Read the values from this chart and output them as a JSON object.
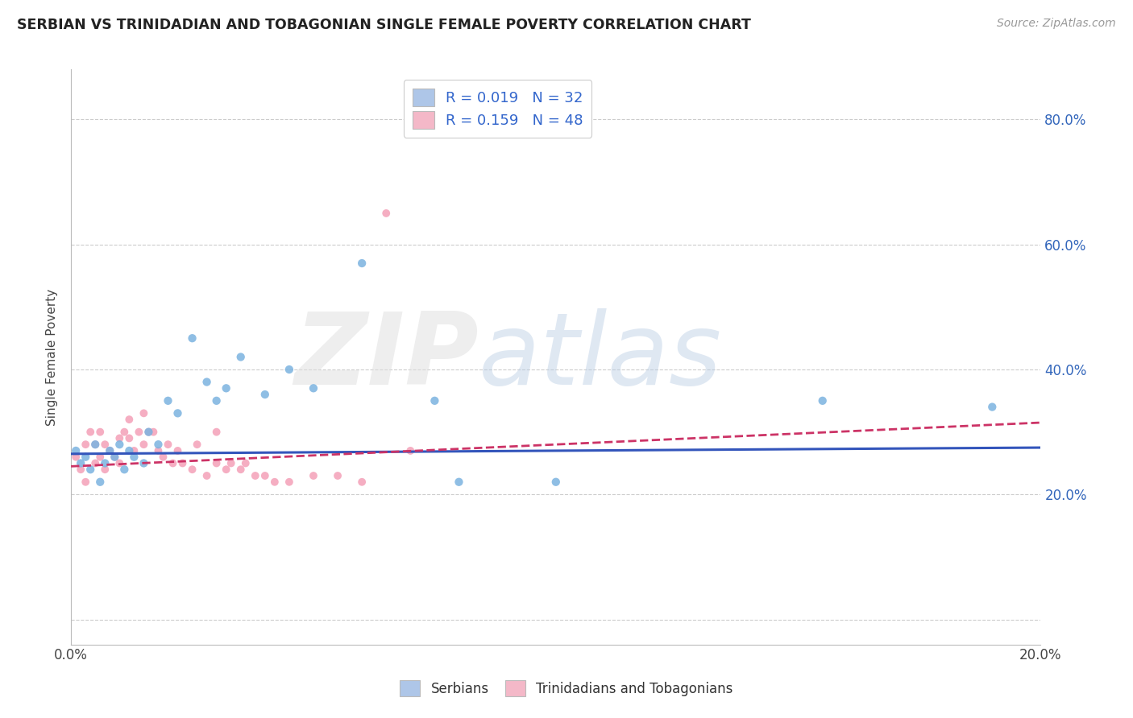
{
  "title": "SERBIAN VS TRINIDADIAN AND TOBAGONIAN SINGLE FEMALE POVERTY CORRELATION CHART",
  "source": "Source: ZipAtlas.com",
  "ylabel": "Single Female Poverty",
  "xlim": [
    0.0,
    0.2
  ],
  "ylim": [
    -0.04,
    0.88
  ],
  "yticks": [
    0.0,
    0.2,
    0.4,
    0.6,
    0.8
  ],
  "ytick_labels": [
    "",
    "20.0%",
    "40.0%",
    "60.0%",
    "80.0%"
  ],
  "xticks": [
    0.0,
    0.05,
    0.1,
    0.15,
    0.2
  ],
  "xtick_labels": [
    "0.0%",
    "",
    "",
    "",
    "20.0%"
  ],
  "legend_color1": "#aec6e8",
  "legend_color2": "#f4b8c8",
  "scatter_color1": "#7bb3e0",
  "scatter_color2": "#f4a0b8",
  "trend_color1": "#3355bb",
  "trend_color2": "#cc3366",
  "background_color": "#ffffff",
  "grid_color": "#cccccc",
  "series1_x": [
    0.001,
    0.002,
    0.003,
    0.004,
    0.005,
    0.006,
    0.007,
    0.008,
    0.009,
    0.01,
    0.011,
    0.012,
    0.013,
    0.015,
    0.016,
    0.018,
    0.02,
    0.022,
    0.025,
    0.028,
    0.03,
    0.032,
    0.035,
    0.04,
    0.045,
    0.05,
    0.06,
    0.075,
    0.08,
    0.1,
    0.155,
    0.19
  ],
  "series1_y": [
    0.27,
    0.25,
    0.26,
    0.24,
    0.28,
    0.22,
    0.25,
    0.27,
    0.26,
    0.28,
    0.24,
    0.27,
    0.26,
    0.25,
    0.3,
    0.28,
    0.35,
    0.33,
    0.45,
    0.38,
    0.35,
    0.37,
    0.42,
    0.36,
    0.4,
    0.37,
    0.57,
    0.35,
    0.22,
    0.22,
    0.35,
    0.34
  ],
  "series2_x": [
    0.001,
    0.002,
    0.003,
    0.003,
    0.004,
    0.005,
    0.005,
    0.006,
    0.006,
    0.007,
    0.007,
    0.008,
    0.009,
    0.01,
    0.01,
    0.011,
    0.012,
    0.012,
    0.013,
    0.014,
    0.015,
    0.015,
    0.016,
    0.017,
    0.018,
    0.019,
    0.02,
    0.021,
    0.022,
    0.023,
    0.025,
    0.026,
    0.028,
    0.03,
    0.03,
    0.032,
    0.033,
    0.035,
    0.036,
    0.038,
    0.04,
    0.042,
    0.045,
    0.05,
    0.055,
    0.06,
    0.065,
    0.07
  ],
  "series2_y": [
    0.26,
    0.24,
    0.28,
    0.22,
    0.3,
    0.28,
    0.25,
    0.3,
    0.26,
    0.28,
    0.24,
    0.27,
    0.26,
    0.29,
    0.25,
    0.3,
    0.29,
    0.32,
    0.27,
    0.3,
    0.28,
    0.33,
    0.3,
    0.3,
    0.27,
    0.26,
    0.28,
    0.25,
    0.27,
    0.25,
    0.24,
    0.28,
    0.23,
    0.3,
    0.25,
    0.24,
    0.25,
    0.24,
    0.25,
    0.23,
    0.23,
    0.22,
    0.22,
    0.23,
    0.23,
    0.22,
    0.65,
    0.27
  ],
  "trend1_x": [
    0.0,
    0.2
  ],
  "trend1_y": [
    0.265,
    0.275
  ],
  "trend2_x": [
    0.0,
    0.2
  ],
  "trend2_y": [
    0.245,
    0.315
  ]
}
